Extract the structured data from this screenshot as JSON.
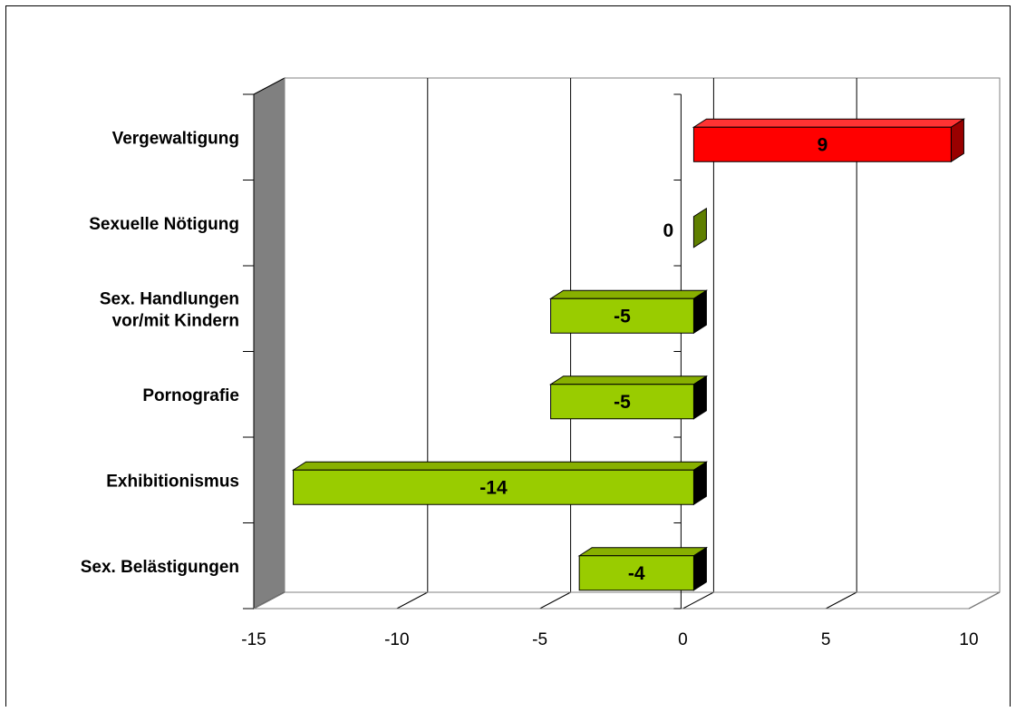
{
  "chart_data": {
    "type": "bar",
    "orientation": "horizontal",
    "style": "3d",
    "categories": [
      [
        "Vergewaltigung"
      ],
      [
        "Sexuelle Nötigung"
      ],
      [
        "Sex. Handlungen",
        "vor/mit Kindern"
      ],
      [
        "Pornografie"
      ],
      [
        "Exhibitionismus"
      ],
      [
        "Sex. Belästigungen"
      ]
    ],
    "values": [
      9,
      0,
      -5,
      -5,
      -14,
      -4
    ],
    "data_labels": [
      "9",
      "0",
      "-5",
      "-5",
      "-14",
      "-4"
    ],
    "xlim": [
      -15,
      10
    ],
    "xticks": [
      -15,
      -10,
      -5,
      0,
      5,
      10
    ],
    "tick_labels": [
      "-15",
      "-10",
      "-5",
      "0",
      "5",
      "10"
    ],
    "grid": true,
    "legend": "none",
    "colors": {
      "positive": "#ff0000",
      "positive_top": "#ff3333",
      "positive_side": "#990000",
      "negative": "#99cc00",
      "negative_top": "#88b000",
      "negative_side": "#000000",
      "zero": "#5f7f00",
      "wall": "#808080"
    }
  }
}
